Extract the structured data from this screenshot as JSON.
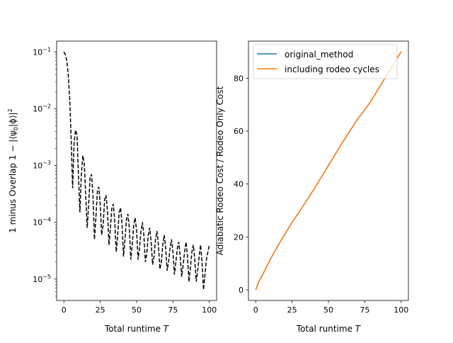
{
  "chart_data": [
    {
      "type": "line",
      "title": "",
      "xlabel": "Total runtime T",
      "xlabel_text": "Total runtime ",
      "xlabel_var": "T",
      "ylabel": "1 minus Overlap 1 − |⟨ψ0|ϕ⟩|²",
      "ylabel_text": "1 minus Overlap 1 − |⟨ψ",
      "ylabel_sub": "0",
      "ylabel_text2": "|ϕ⟩|",
      "ylabel_sup": "2",
      "yscale": "log",
      "xlim": [
        -5,
        105
      ],
      "ylim": [
        4.2e-06,
        0.155
      ],
      "x_ticks": [
        0,
        25,
        50,
        75,
        100
      ],
      "x_tick_labels": [
        "0",
        "25",
        "50",
        "75",
        "100"
      ],
      "y_ticks": [
        1e-05,
        0.0001,
        0.001,
        0.01,
        0.1
      ],
      "y_tick_labels": [
        {
          "base": "10",
          "exp": "−5"
        },
        {
          "base": "10",
          "exp": "−4"
        },
        {
          "base": "10",
          "exp": "−3"
        },
        {
          "base": "10",
          "exp": "−2"
        },
        {
          "base": "10",
          "exp": "−1"
        }
      ],
      "grid": false,
      "series": [
        {
          "color": "#000000",
          "linestyle": "dashed",
          "x": [
            0,
            1,
            2,
            3,
            4,
            5,
            6,
            7,
            8,
            9,
            10,
            11,
            12,
            13,
            14,
            15,
            16,
            17,
            18,
            19,
            20,
            21,
            22,
            23,
            24,
            25,
            26,
            27,
            28,
            29,
            30,
            31,
            32,
            33,
            34,
            35,
            36,
            37,
            38,
            39,
            40,
            41,
            42,
            43,
            44,
            45,
            46,
            47,
            48,
            49,
            50,
            51,
            52,
            53,
            54,
            55,
            56,
            57,
            58,
            59,
            60,
            61,
            62,
            63,
            64,
            65,
            66,
            67,
            68,
            69,
            70,
            71,
            72,
            73,
            74,
            75,
            76,
            77,
            78,
            79,
            80,
            81,
            82,
            83,
            84,
            85,
            86,
            87,
            88,
            89,
            90,
            91,
            92,
            93,
            94,
            95,
            96,
            97,
            98,
            99,
            100
          ],
          "y": [
            0.1,
            0.09,
            0.07,
            0.04,
            0.015,
            0.003,
            0.0004,
            0.0025,
            0.0042,
            0.0035,
            0.0007,
            0.00015,
            0.0007,
            0.0015,
            0.0011,
            0.0003,
            8e-05,
            0.0002,
            0.0006,
            0.0007,
            0.0003,
            5e-05,
            0.00012,
            0.00035,
            0.00042,
            0.0002,
            6e-05,
            9e-05,
            0.00025,
            0.0003,
            0.00015,
            4e-05,
            8e-05,
            0.00018,
            0.00021,
            0.0001,
            3e-05,
            6e-05,
            0.00015,
            0.00018,
            9e-05,
            2.5e-05,
            5e-05,
            0.00011,
            0.00014,
            8e-05,
            2.2e-05,
            4e-05,
            9e-05,
            0.00012,
            7e-05,
            2.2e-05,
            3.5e-05,
            7e-05,
            0.0001,
            6e-05,
            2e-05,
            2.8e-05,
            6e-05,
            8e-05,
            4.5e-05,
            1.8e-05,
            2.5e-05,
            5e-05,
            7e-05,
            4e-05,
            1.5e-05,
            2e-05,
            4e-05,
            6e-05,
            3.5e-05,
            1.4e-05,
            2e-05,
            3.5e-05,
            5e-05,
            3e-05,
            1.2e-05,
            2e-05,
            3.5e-05,
            4.5e-05,
            2.5e-05,
            1.1e-05,
            1.8e-05,
            3e-05,
            4.5e-05,
            2.5e-05,
            9e-06,
            1.6e-05,
            3e-05,
            4e-05,
            2.2e-05,
            9e-06,
            1.4e-05,
            2.5e-05,
            4e-05,
            2e-05,
            6.5e-06,
            1.2e-05,
            2.2e-05,
            3e-05,
            4e-05
          ]
        }
      ]
    },
    {
      "type": "line",
      "title": "",
      "xlabel": "Total runtime T",
      "xlabel_text": "Total runtime ",
      "xlabel_var": "T",
      "ylabel": "Adiabatic Rodeo Cost / Rodeo Only Cost",
      "xlim": [
        -5,
        105
      ],
      "ylim": [
        -4,
        94
      ],
      "x_ticks": [
        0,
        25,
        50,
        75,
        100
      ],
      "y_ticks": [
        0,
        20,
        40,
        60,
        80
      ],
      "grid": false,
      "legend_position": "upper-left",
      "series": [
        {
          "name": "original_method",
          "color": "#1f77b4",
          "x": [
            0,
            1,
            2,
            5,
            10,
            15,
            20,
            25,
            30,
            40,
            50,
            60,
            70,
            75,
            80,
            90,
            100
          ],
          "y": [
            0,
            1.5,
            3,
            6,
            11.5,
            16.5,
            21,
            25.5,
            29.5,
            38,
            47,
            56,
            64.5,
            68,
            72,
            81,
            90
          ]
        },
        {
          "name": "including rodeo cycles",
          "color": "#ff7f0e",
          "x": [
            0,
            1,
            2,
            5,
            10,
            15,
            20,
            25,
            30,
            40,
            50,
            60,
            70,
            75,
            80,
            90,
            100
          ],
          "y": [
            0,
            1.5,
            3,
            6,
            11.5,
            16.5,
            21,
            25.5,
            29.5,
            38,
            47,
            56,
            64.5,
            68,
            72,
            81,
            90
          ]
        }
      ]
    }
  ]
}
